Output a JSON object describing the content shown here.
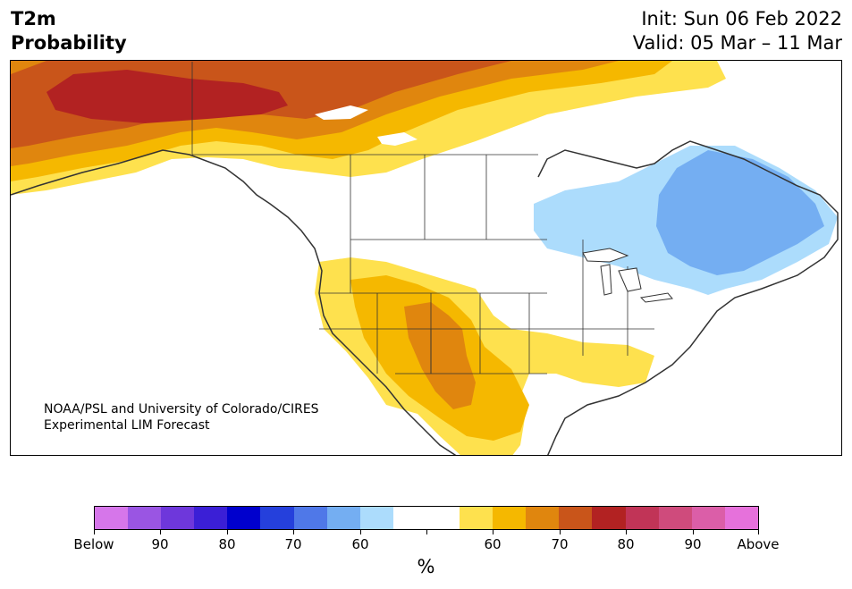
{
  "title": {
    "line1": "T2m",
    "line2": "Probability"
  },
  "dates": {
    "init": "Init: Sun 06 Feb 2022",
    "valid": "Valid: 05 Mar – 11 Mar"
  },
  "credit": {
    "line1": "NOAA/PSL and University of Colorado/CIRES",
    "line2": "Experimental LIM Forecast"
  },
  "colorbar": {
    "colors": [
      "#d676ea",
      "#9a55e3",
      "#6e37db",
      "#3b1fd6",
      "#0000cd",
      "#2540dc",
      "#4f78e8",
      "#74aef2",
      "#acdcfc",
      "#ffffff",
      "#ffffff",
      "#fee14e",
      "#f5b800",
      "#e0860e",
      "#c9551a",
      "#b22222",
      "#c13457",
      "#cf4b7c",
      "#db5ea8",
      "#e671db"
    ],
    "ticks": [
      {
        "label": "Below",
        "index": 0
      },
      {
        "label": "90",
        "index": 2
      },
      {
        "label": "80",
        "index": 4
      },
      {
        "label": "70",
        "index": 6
      },
      {
        "label": "60",
        "index": 8
      },
      {
        "label": "",
        "index": 10
      },
      {
        "label": "60",
        "index": 12
      },
      {
        "label": "70",
        "index": 14
      },
      {
        "label": "80",
        "index": 16
      },
      {
        "label": "90",
        "index": 18
      },
      {
        "label": "Above",
        "index": 20
      }
    ],
    "units": "%"
  }
}
